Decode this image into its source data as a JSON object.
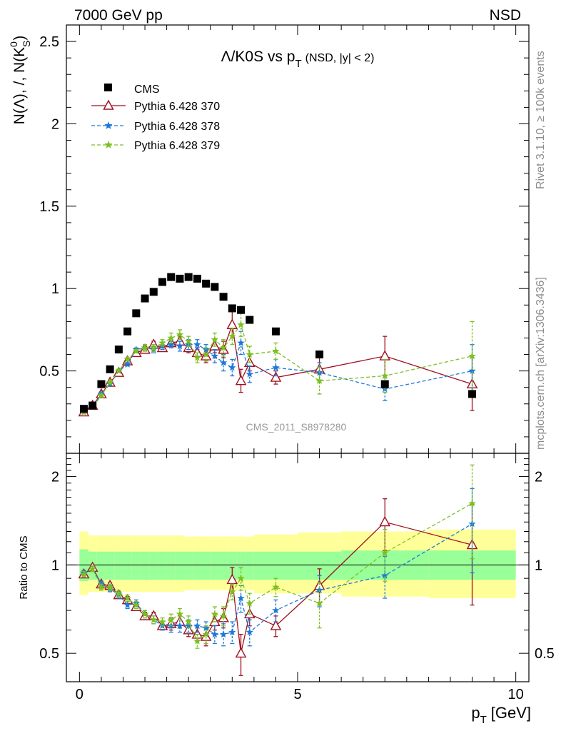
{
  "header": {
    "left": "7000 GeV pp",
    "right": "NSD"
  },
  "side": {
    "rivet": "Rivet 3.1.10, ≥ 100k events",
    "mcplots": "mcplots.cern.ch [arXiv:1306.3436]"
  },
  "colors": {
    "cms": "#000000",
    "p370": "#a01020",
    "p378": "#1e78d8",
    "p379": "#7cc020",
    "band_inner": "#99ff99",
    "band_outer": "#ffff99"
  },
  "chart_data": [
    {
      "type": "scatter",
      "title_main": "Λ/K0S vs p",
      "title_sub": "T",
      "title_tail": "(NSD, |y| < 2)",
      "ylabel": "N(Λ), /, N(K",
      "ylabel_sup": "0",
      "ylabel_sub": "S",
      "ylabel_end": ")",
      "watermark": "CMS_2011_S8978280",
      "xlim": [
        -0.3,
        10.3
      ],
      "ylim": [
        0,
        2.6
      ],
      "xticks": [
        0,
        5,
        10
      ],
      "yticks": [
        0.5,
        1,
        1.5,
        2,
        2.5
      ],
      "ytick_labels": [
        "0.5",
        "1",
        "1.5",
        "2",
        "2.5"
      ],
      "legend_position": "top-left",
      "series": [
        {
          "name": "CMS",
          "marker": "square",
          "x": [
            0.1,
            0.3,
            0.5,
            0.7,
            0.9,
            1.1,
            1.3,
            1.5,
            1.7,
            1.9,
            2.1,
            2.3,
            2.5,
            2.7,
            2.9,
            3.1,
            3.3,
            3.5,
            3.7,
            3.9,
            4.5,
            5.5,
            7.0,
            9.0
          ],
          "y": [
            0.27,
            0.29,
            0.42,
            0.51,
            0.63,
            0.74,
            0.85,
            0.94,
            0.98,
            1.04,
            1.07,
            1.06,
            1.07,
            1.06,
            1.03,
            1.01,
            0.95,
            0.88,
            0.87,
            0.81,
            0.74,
            0.6,
            0.42,
            0.36
          ]
        },
        {
          "name": "Pythia 6.428 370",
          "marker": "open-triangle",
          "line": "solid",
          "x": [
            0.1,
            0.3,
            0.5,
            0.7,
            0.9,
            1.1,
            1.3,
            1.5,
            1.7,
            1.9,
            2.1,
            2.3,
            2.5,
            2.7,
            2.9,
            3.1,
            3.3,
            3.5,
            3.7,
            3.9,
            4.5,
            5.5,
            7.0,
            9.0
          ],
          "y": [
            0.25,
            0.29,
            0.36,
            0.43,
            0.49,
            0.56,
            0.61,
            0.63,
            0.66,
            0.64,
            0.67,
            0.68,
            0.64,
            0.61,
            0.59,
            0.65,
            0.63,
            0.78,
            0.44,
            0.55,
            0.46,
            0.51,
            0.59,
            0.42
          ],
          "err": [
            0.01,
            0.01,
            0.01,
            0.01,
            0.01,
            0.01,
            0.01,
            0.02,
            0.02,
            0.02,
            0.02,
            0.03,
            0.03,
            0.03,
            0.04,
            0.04,
            0.05,
            0.08,
            0.07,
            0.05,
            0.04,
            0.07,
            0.12,
            0.16
          ]
        },
        {
          "name": "Pythia 6.428 378",
          "marker": "star",
          "line": "dashed",
          "x": [
            0.1,
            0.3,
            0.5,
            0.7,
            0.9,
            1.1,
            1.3,
            1.5,
            1.7,
            1.9,
            2.1,
            2.3,
            2.5,
            2.7,
            2.9,
            3.1,
            3.3,
            3.5,
            3.7,
            3.9,
            4.5,
            5.5,
            7.0,
            9.0
          ],
          "y": [
            0.25,
            0.28,
            0.36,
            0.42,
            0.5,
            0.54,
            0.63,
            0.64,
            0.63,
            0.65,
            0.66,
            0.65,
            0.66,
            0.66,
            0.63,
            0.59,
            0.55,
            0.52,
            0.67,
            0.48,
            0.52,
            0.49,
            0.39,
            0.5
          ],
          "err": [
            0.01,
            0.01,
            0.01,
            0.01,
            0.01,
            0.01,
            0.01,
            0.02,
            0.02,
            0.02,
            0.02,
            0.03,
            0.03,
            0.03,
            0.03,
            0.04,
            0.05,
            0.05,
            0.07,
            0.05,
            0.05,
            0.06,
            0.07,
            0.16
          ]
        },
        {
          "name": "Pythia 6.428 379",
          "marker": "star",
          "line": "dashed",
          "x": [
            0.1,
            0.3,
            0.5,
            0.7,
            0.9,
            1.1,
            1.3,
            1.5,
            1.7,
            1.9,
            2.1,
            2.3,
            2.5,
            2.7,
            2.9,
            3.1,
            3.3,
            3.5,
            3.7,
            3.9,
            4.5,
            5.5,
            7.0,
            9.0
          ],
          "y": [
            0.25,
            0.28,
            0.35,
            0.43,
            0.5,
            0.57,
            0.62,
            0.64,
            0.64,
            0.67,
            0.7,
            0.72,
            0.68,
            0.58,
            0.6,
            0.69,
            0.64,
            0.71,
            0.78,
            0.6,
            0.62,
            0.44,
            0.47,
            0.59
          ],
          "err": [
            0.01,
            0.01,
            0.01,
            0.01,
            0.01,
            0.01,
            0.01,
            0.02,
            0.02,
            0.02,
            0.03,
            0.03,
            0.03,
            0.03,
            0.04,
            0.04,
            0.05,
            0.05,
            0.07,
            0.05,
            0.05,
            0.08,
            0.1,
            0.21
          ]
        }
      ]
    },
    {
      "type": "scatter",
      "ylabel": "Ratio to CMS",
      "xlabel": "p",
      "xlabel_sub": "T",
      "xlabel_unit": "[GeV]",
      "xlim": [
        -0.3,
        10.3
      ],
      "ylim": [
        0.4,
        2.4
      ],
      "log_y": true,
      "xticks": [
        0,
        5,
        10
      ],
      "xtick_labels": [
        "0",
        "5",
        "10"
      ],
      "yticks": [
        0.5,
        1,
        2
      ],
      "ytick_labels": [
        "0.5",
        "1",
        "2"
      ],
      "band": {
        "edges": [
          0.0,
          0.2,
          0.4,
          0.6,
          0.8,
          1.0,
          1.2,
          1.4,
          1.6,
          1.8,
          2.0,
          2.2,
          2.4,
          2.6,
          2.8,
          3.0,
          3.2,
          3.4,
          3.6,
          3.8,
          4.0,
          5.0,
          6.0,
          8.0,
          10.0
        ],
        "inner_low": [
          0.88,
          0.89,
          0.89,
          0.89,
          0.89,
          0.89,
          0.89,
          0.89,
          0.89,
          0.89,
          0.89,
          0.89,
          0.89,
          0.89,
          0.89,
          0.89,
          0.89,
          0.89,
          0.89,
          0.89,
          0.89,
          0.89,
          0.89,
          0.89
        ],
        "inner_high": [
          1.13,
          1.11,
          1.11,
          1.11,
          1.11,
          1.11,
          1.11,
          1.11,
          1.11,
          1.11,
          1.11,
          1.11,
          1.11,
          1.11,
          1.11,
          1.11,
          1.11,
          1.11,
          1.11,
          1.11,
          1.11,
          1.11,
          1.12,
          1.12
        ],
        "outer_low": [
          0.79,
          0.81,
          0.81,
          0.81,
          0.81,
          0.81,
          0.81,
          0.81,
          0.81,
          0.81,
          0.81,
          0.81,
          0.82,
          0.82,
          0.82,
          0.82,
          0.82,
          0.82,
          0.82,
          0.82,
          0.8,
          0.8,
          0.78,
          0.77
        ],
        "outer_high": [
          1.3,
          1.26,
          1.26,
          1.26,
          1.26,
          1.26,
          1.26,
          1.26,
          1.26,
          1.26,
          1.26,
          1.26,
          1.25,
          1.25,
          1.25,
          1.25,
          1.25,
          1.25,
          1.25,
          1.25,
          1.27,
          1.29,
          1.3,
          1.32
        ]
      },
      "series": [
        {
          "name": "Pythia 6.428 370",
          "x": [
            0.1,
            0.3,
            0.5,
            0.7,
            0.9,
            1.1,
            1.3,
            1.5,
            1.7,
            1.9,
            2.1,
            2.3,
            2.5,
            2.7,
            2.9,
            3.1,
            3.3,
            3.5,
            3.7,
            3.9,
            4.5,
            5.5,
            7.0,
            9.0
          ],
          "y": [
            0.93,
            0.98,
            0.86,
            0.85,
            0.79,
            0.76,
            0.72,
            0.67,
            0.67,
            0.62,
            0.63,
            0.64,
            0.6,
            0.58,
            0.57,
            0.64,
            0.66,
            0.89,
            0.5,
            0.68,
            0.62,
            0.85,
            1.4,
            1.17
          ],
          "err": [
            0.02,
            0.02,
            0.02,
            0.02,
            0.02,
            0.02,
            0.02,
            0.02,
            0.02,
            0.02,
            0.03,
            0.03,
            0.03,
            0.03,
            0.04,
            0.04,
            0.05,
            0.09,
            0.08,
            0.06,
            0.05,
            0.12,
            0.28,
            0.44
          ]
        },
        {
          "name": "Pythia 6.428 378",
          "x": [
            0.1,
            0.3,
            0.5,
            0.7,
            0.9,
            1.1,
            1.3,
            1.5,
            1.7,
            1.9,
            2.1,
            2.3,
            2.5,
            2.7,
            2.9,
            3.1,
            3.3,
            3.5,
            3.7,
            3.9,
            4.5,
            5.5,
            7.0,
            9.0
          ],
          "y": [
            0.94,
            0.97,
            0.86,
            0.83,
            0.79,
            0.73,
            0.74,
            0.68,
            0.65,
            0.62,
            0.62,
            0.62,
            0.62,
            0.62,
            0.61,
            0.58,
            0.58,
            0.59,
            0.77,
            0.59,
            0.7,
            0.82,
            0.92,
            1.38
          ],
          "err": [
            0.02,
            0.02,
            0.02,
            0.02,
            0.02,
            0.02,
            0.02,
            0.02,
            0.02,
            0.02,
            0.03,
            0.03,
            0.03,
            0.03,
            0.03,
            0.04,
            0.05,
            0.05,
            0.08,
            0.06,
            0.06,
            0.1,
            0.15,
            0.44
          ]
        },
        {
          "name": "Pythia 6.428 379",
          "x": [
            0.1,
            0.3,
            0.5,
            0.7,
            0.9,
            1.1,
            1.3,
            1.5,
            1.7,
            1.9,
            2.1,
            2.3,
            2.5,
            2.7,
            2.9,
            3.1,
            3.3,
            3.5,
            3.7,
            3.9,
            4.5,
            5.5,
            7.0,
            9.0
          ],
          "y": [
            0.93,
            0.97,
            0.84,
            0.84,
            0.8,
            0.77,
            0.73,
            0.68,
            0.65,
            0.64,
            0.65,
            0.68,
            0.64,
            0.55,
            0.58,
            0.68,
            0.67,
            0.81,
            0.9,
            0.74,
            0.84,
            0.74,
            1.1,
            1.62
          ],
          "err": [
            0.02,
            0.02,
            0.02,
            0.02,
            0.02,
            0.02,
            0.02,
            0.02,
            0.02,
            0.02,
            0.03,
            0.03,
            0.03,
            0.03,
            0.04,
            0.04,
            0.05,
            0.05,
            0.08,
            0.06,
            0.06,
            0.13,
            0.22,
            0.57
          ]
        }
      ]
    }
  ]
}
